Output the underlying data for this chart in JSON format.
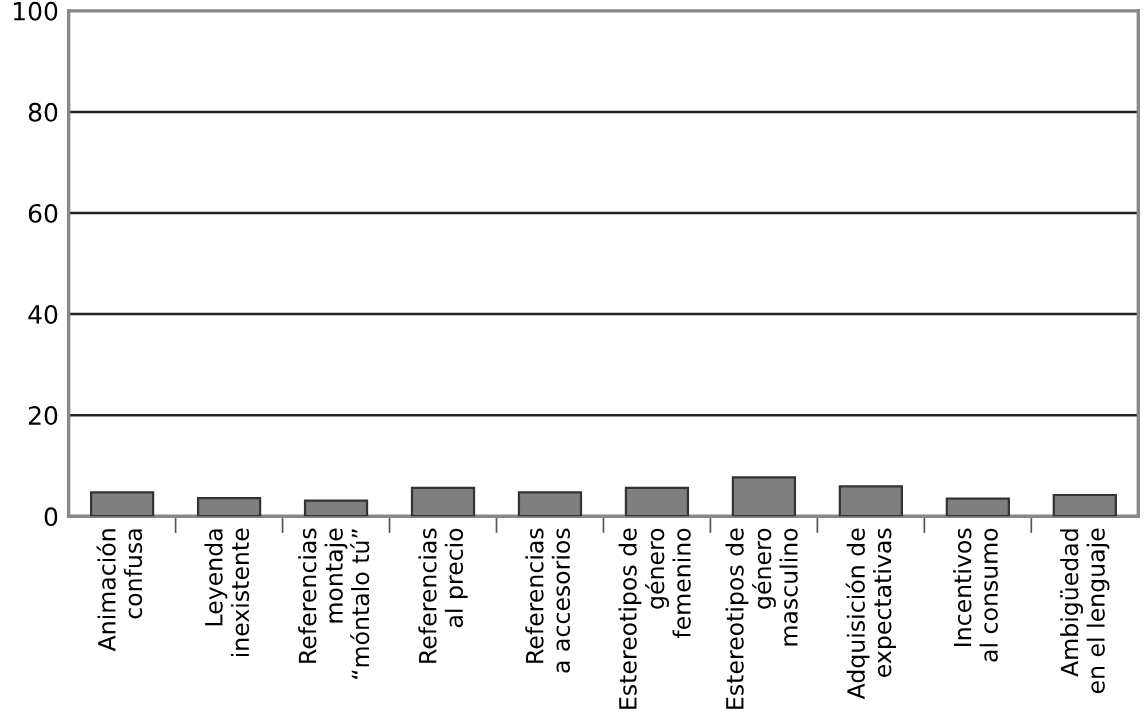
{
  "chart_data": {
    "type": "bar",
    "categories": [
      "Animación\nconfusa",
      "Leyenda\ninexistente",
      "Referencias\nmontaje\n“móntalo tú”",
      "Referencias\nal precio",
      "Referencias\na accesorios",
      "Estereotipos de\ngénero\nfemenino",
      "Estereotipos de\ngénero\nmasculino",
      "Adquisición de\nexpectativas",
      "Incentivos\nal consumo",
      "Ambigüedad\nen el lenguaje"
    ],
    "values": [
      4.7,
      3.6,
      3.1,
      5.6,
      4.7,
      5.6,
      7.7,
      5.9,
      3.5,
      4.2
    ],
    "color": "#7f7f7f",
    "ylim": [
      0,
      100
    ],
    "yticks": [
      0,
      20,
      40,
      60,
      80,
      100
    ],
    "grid": "y"
  }
}
